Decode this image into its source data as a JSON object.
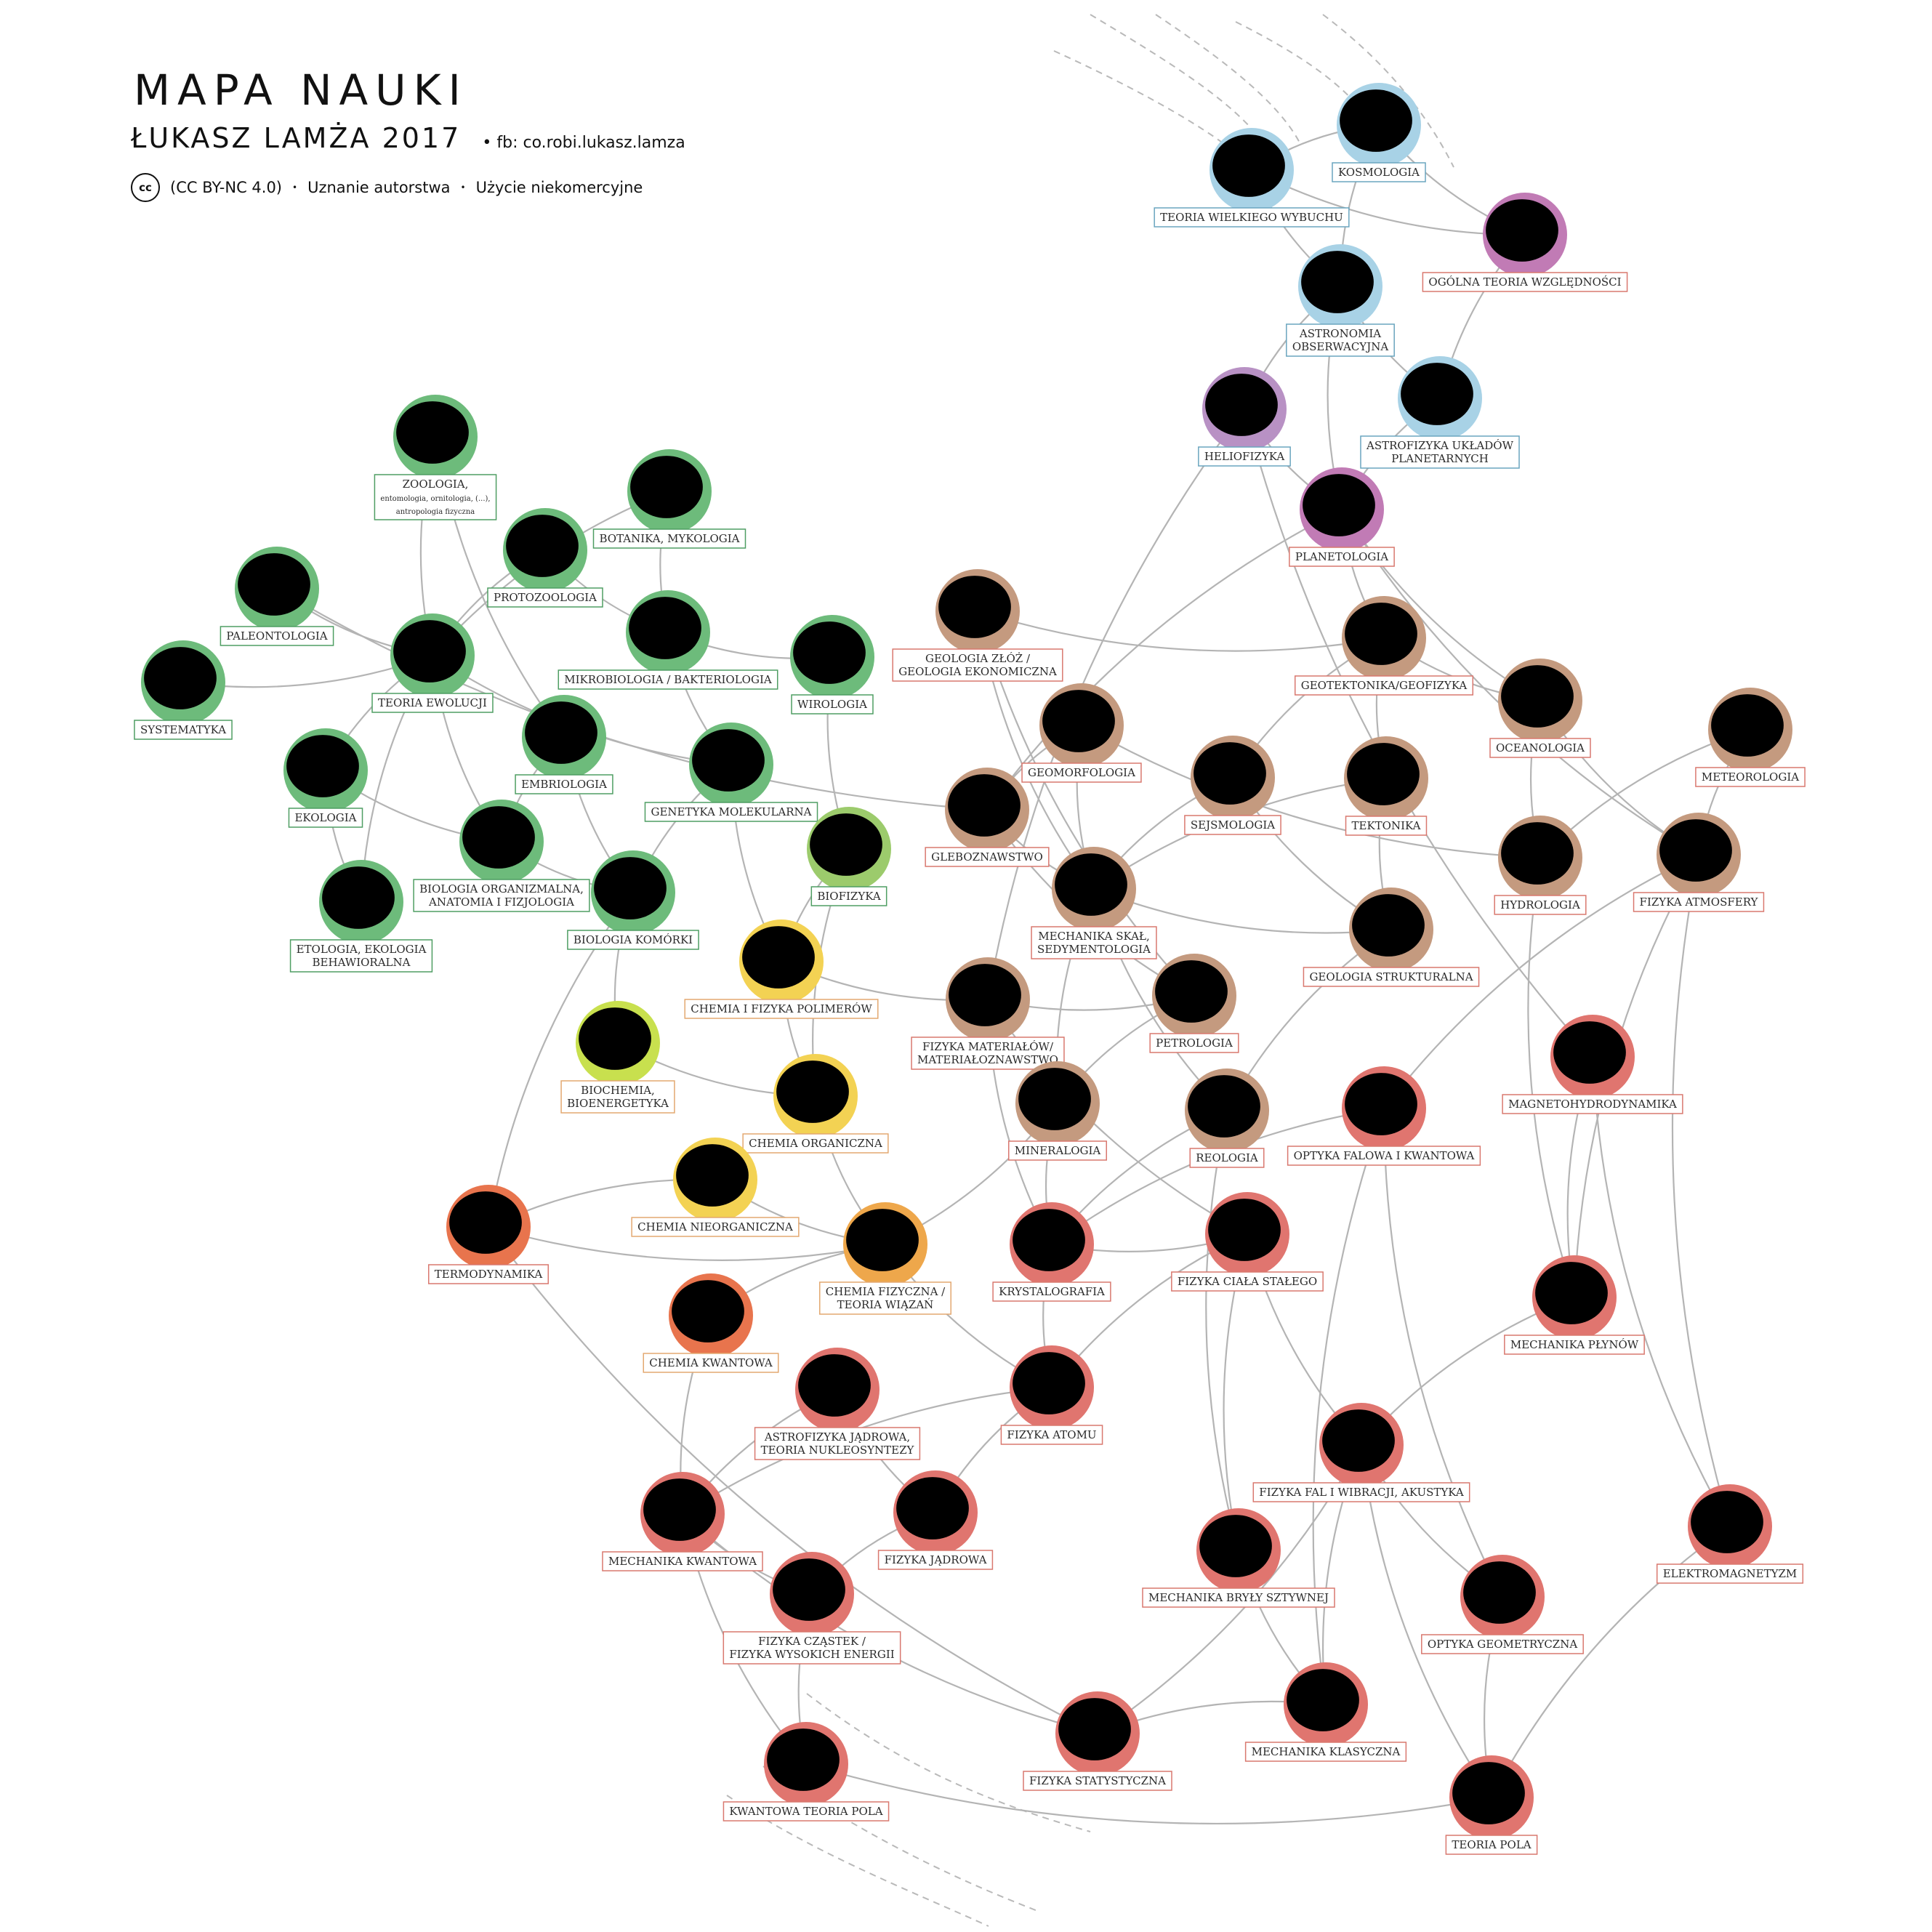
{
  "header": {
    "title": "MAPA NAUKI",
    "author": "ŁUKASZ LAMŻA 2017",
    "fb": "• fb: co.robi.lukasz.lamza",
    "cc_symbol": "cc",
    "license": "(CC BY-NC 4.0)",
    "attribution": "Uznanie autorstwa",
    "noncommercial": "Użycie niekomercyjne"
  },
  "colors": {
    "biology": "#6dbb7b",
    "biology_border": "#4f9e63",
    "biophysics": "#9ccb6c",
    "biochem": "#c8e04e",
    "chem_yellow": "#f3d253",
    "chem_orange": "#eea74b",
    "thermo": "#e8744d",
    "earth": "#c49a7f",
    "physics": "#e0756f",
    "astro_blue": "#a8d2e6",
    "astro_purple": "#b891c4",
    "gr_magenta": "#c17bb5",
    "edge": "#b4b4b4",
    "ink": "#000000"
  },
  "nodes": [
    {
      "id": "kosmologia",
      "lines": [
        "KOSMOLOGIA"
      ],
      "color": "astro_blue",
      "border": "#6aa5bf"
    },
    {
      "id": "teoria-wielkiego-wybuchu",
      "lines": [
        "TEORIA WIELKIEGO WYBUCHU"
      ],
      "color": "astro_blue",
      "border": "#6aa5bf"
    },
    {
      "id": "ogolna-teoria-wzglednosci",
      "lines": [
        "OGÓLNA TEORIA WZGLĘDNOŚCI"
      ],
      "color": "gr_magenta",
      "border": "#d9786f"
    },
    {
      "id": "astronomia-obserwacyjna",
      "lines": [
        "ASTRONOMIA",
        "OBSERWACYJNA"
      ],
      "color": "astro_blue",
      "border": "#6aa5bf"
    },
    {
      "id": "astrofizyka-ukladow",
      "lines": [
        "ASTROFIZYKA UKŁADÓW",
        "PLANETARNYCH"
      ],
      "color": "astro_blue",
      "border": "#6aa5bf"
    },
    {
      "id": "heliofizyka",
      "lines": [
        "HELIOFIZYKA"
      ],
      "color": "astro_purple",
      "border": "#6aa5bf"
    },
    {
      "id": "planetologia",
      "lines": [
        "PLANETOLOGIA"
      ],
      "color": "gr_magenta",
      "border": "#d9786f"
    },
    {
      "id": "zoologia",
      "lines": [
        "ZOOLOGIA,"
      ],
      "sub": [
        "entomologia, ornitologia, (...),",
        "antropologia fizyczna"
      ],
      "color": "biology",
      "border": "#4f9e63"
    },
    {
      "id": "botanika",
      "lines": [
        "BOTANIKA, MYKOLOGIA"
      ],
      "color": "biology",
      "border": "#4f9e63"
    },
    {
      "id": "protozoologia",
      "lines": [
        "PROTOZOOLOGIA"
      ],
      "color": "biology",
      "border": "#4f9e63"
    },
    {
      "id": "paleontologia",
      "lines": [
        "PALEONTOLOGIA"
      ],
      "color": "biology",
      "border": "#4f9e63"
    },
    {
      "id": "teoria-ewolucji",
      "lines": [
        "TEORIA EWOLUCJI"
      ],
      "color": "biology",
      "border": "#4f9e63"
    },
    {
      "id": "mikrobiologia",
      "lines": [
        "MIKROBIOLOGIA / BAKTERIOLOGIA"
      ],
      "color": "biology",
      "border": "#4f9e63"
    },
    {
      "id": "wirologia",
      "lines": [
        "WIROLOGIA"
      ],
      "color": "biology",
      "border": "#4f9e63"
    },
    {
      "id": "systematyka",
      "lines": [
        "SYSTEMATYKA"
      ],
      "color": "biology",
      "border": "#4f9e63"
    },
    {
      "id": "ekologia",
      "lines": [
        "EKOLOGIA"
      ],
      "color": "biology",
      "border": "#4f9e63"
    },
    {
      "id": "embriologia",
      "lines": [
        "EMBRIOLOGIA"
      ],
      "color": "biology",
      "border": "#4f9e63"
    },
    {
      "id": "genetyka",
      "lines": [
        "GENETYKA MOLEKULARNA"
      ],
      "color": "biology",
      "border": "#4f9e63"
    },
    {
      "id": "biofizyka",
      "lines": [
        "BIOFIZYKA"
      ],
      "color": "biophysics",
      "border": "#4f9e63"
    },
    {
      "id": "biologia-organizmalna",
      "lines": [
        "BIOLOGIA ORGANIZMALNA,",
        "ANATOMIA I FIZJOLOGIA"
      ],
      "color": "biology",
      "border": "#4f9e63"
    },
    {
      "id": "etologia",
      "lines": [
        "ETOLOGIA, EKOLOGIA",
        "BEHAWIORALNA"
      ],
      "color": "biology",
      "border": "#4f9e63"
    },
    {
      "id": "biologia-komorki",
      "lines": [
        "BIOLOGIA KOMÓRKI"
      ],
      "color": "biology",
      "border": "#4f9e63"
    },
    {
      "id": "chemia-polimerow",
      "lines": [
        "CHEMIA I FIZYKA POLIMERÓW"
      ],
      "color": "chem_yellow",
      "border": "#e3a870"
    },
    {
      "id": "biochemia",
      "lines": [
        "BIOCHEMIA,",
        "BIOENERGETYKA"
      ],
      "color": "biochem",
      "border": "#e3a870"
    },
    {
      "id": "chemia-organiczna",
      "lines": [
        "CHEMIA ORGANICZNA"
      ],
      "color": "chem_yellow",
      "border": "#e3a870"
    },
    {
      "id": "chemia-nieorganiczna",
      "lines": [
        "CHEMIA NIEORGANICZNA"
      ],
      "color": "chem_yellow",
      "border": "#e3a870"
    },
    {
      "id": "termodynamika",
      "lines": [
        "TERMODYNAMIKA"
      ],
      "color": "thermo",
      "border": "#d9786f"
    },
    {
      "id": "chemia-fizyczna",
      "lines": [
        "CHEMIA FIZYCZNA /",
        "TEORIA WIĄZAŃ"
      ],
      "color": "chem_orange",
      "border": "#e3a870"
    },
    {
      "id": "chemia-kwantowa",
      "lines": [
        "CHEMIA KWANTOWA"
      ],
      "color": "thermo",
      "border": "#e3a870"
    },
    {
      "id": "geologia-zloz",
      "lines": [
        "GEOLOGIA ZŁÓŻ /",
        "GEOLOGIA EKONOMICZNA"
      ],
      "color": "earth",
      "border": "#d9786f"
    },
    {
      "id": "geotektonika",
      "lines": [
        "GEOTEKTONIKA/GEOFIZYKA"
      ],
      "color": "earth",
      "border": "#d9786f"
    },
    {
      "id": "geomorfologia",
      "lines": [
        "GEOMORFOLOGIA"
      ],
      "color": "earth",
      "border": "#d9786f"
    },
    {
      "id": "oceanologia",
      "lines": [
        "OCEANOLOGIA"
      ],
      "color": "earth",
      "border": "#d9786f"
    },
    {
      "id": "meteorologia",
      "lines": [
        "METEOROLOGIA"
      ],
      "color": "earth",
      "border": "#d9786f"
    },
    {
      "id": "sejsmologia",
      "lines": [
        "SEJSMOLOGIA"
      ],
      "color": "earth",
      "border": "#d9786f"
    },
    {
      "id": "tektonika",
      "lines": [
        "TEKTONIKA"
      ],
      "color": "earth",
      "border": "#d9786f"
    },
    {
      "id": "gleboznawstwo",
      "lines": [
        "GLEBOZNAWSTWO"
      ],
      "color": "earth",
      "border": "#d9786f"
    },
    {
      "id": "hydrologia",
      "lines": [
        "HYDROLOGIA"
      ],
      "color": "earth",
      "border": "#d9786f"
    },
    {
      "id": "fizyka-atmosfery",
      "lines": [
        "FIZYKA ATMOSFERY"
      ],
      "color": "earth",
      "border": "#d9786f"
    },
    {
      "id": "mechanika-skal",
      "lines": [
        "MECHANIKA SKAŁ,",
        "SEDYMENTOLOGIA"
      ],
      "color": "earth",
      "border": "#d9786f"
    },
    {
      "id": "geologia-strukturalna",
      "lines": [
        "GEOLOGIA STRUKTURALNA"
      ],
      "color": "earth",
      "border": "#d9786f"
    },
    {
      "id": "fizyka-materialow",
      "lines": [
        "FIZYKA MATERIAŁÓW/",
        "MATERIAŁOZNAWSTWO"
      ],
      "color": "earth",
      "border": "#d9786f"
    },
    {
      "id": "petrologia",
      "lines": [
        "PETROLOGIA"
      ],
      "color": "earth",
      "border": "#d9786f"
    },
    {
      "id": "mineralogia",
      "lines": [
        "MINERALOGIA"
      ],
      "color": "earth",
      "border": "#d9786f"
    },
    {
      "id": "reologia",
      "lines": [
        "REOLOGIA"
      ],
      "color": "earth",
      "border": "#d9786f"
    },
    {
      "id": "optyka-falowa",
      "lines": [
        "OPTYKA FALOWA I KWANTOWA"
      ],
      "color": "physics",
      "border": "#d9786f"
    },
    {
      "id": "magnetohydrodynamika",
      "lines": [
        "MAGNETOHYDRODYNAMIKA"
      ],
      "color": "physics",
      "border": "#d9786f"
    },
    {
      "id": "krystalografia",
      "lines": [
        "KRYSTALOGRAFIA"
      ],
      "color": "physics",
      "border": "#d9786f"
    },
    {
      "id": "fizyka-ciala-stalego",
      "lines": [
        "FIZYKA CIAŁA STAŁEGO"
      ],
      "color": "physics",
      "border": "#d9786f"
    },
    {
      "id": "mechanika-plynow",
      "lines": [
        "MECHANIKA PŁYNÓW"
      ],
      "color": "physics",
      "border": "#d9786f"
    },
    {
      "id": "astrofizyka-jadrowa",
      "lines": [
        "ASTROFIZYKA JĄDROWA,",
        "TEORIA NUKLEOSYNTEZY"
      ],
      "color": "physics",
      "border": "#d9786f"
    },
    {
      "id": "fizyka-atomu",
      "lines": [
        "FIZYKA ATOMU"
      ],
      "color": "physics",
      "border": "#d9786f"
    },
    {
      "id": "fizyka-fal",
      "lines": [
        "FIZYKA FAL I WIBRACJI, AKUSTYKA"
      ],
      "color": "physics",
      "border": "#d9786f"
    },
    {
      "id": "mechanika-kwantowa",
      "lines": [
        "MECHANIKA KWANTOWA"
      ],
      "color": "physics",
      "border": "#d9786f"
    },
    {
      "id": "fizyka-jadrowa",
      "lines": [
        "FIZYKA JĄDROWA"
      ],
      "color": "physics",
      "border": "#d9786f"
    },
    {
      "id": "elektromagnetyzm",
      "lines": [
        "ELEKTROMAGNETYZM"
      ],
      "color": "physics",
      "border": "#d9786f"
    },
    {
      "id": "fizyka-czastek",
      "lines": [
        "FIZYKA CZĄSTEK /",
        "FIZYKA WYSOKICH ENERGII"
      ],
      "color": "physics",
      "border": "#d9786f"
    },
    {
      "id": "mechanika-bryly",
      "lines": [
        "MECHANIKA BRYŁY SZTYWNEJ"
      ],
      "color": "physics",
      "border": "#d9786f"
    },
    {
      "id": "optyka-geometryczna",
      "lines": [
        "OPTYKA GEOMETRYCZNA"
      ],
      "color": "physics",
      "border": "#d9786f"
    },
    {
      "id": "mechanika-klasyczna",
      "lines": [
        "MECHANIKA KLASYCZNA"
      ],
      "color": "physics",
      "border": "#d9786f"
    },
    {
      "id": "fizyka-statystyczna",
      "lines": [
        "FIZYKA STATYSTYCZNA"
      ],
      "color": "physics",
      "border": "#d9786f"
    },
    {
      "id": "kwantowa-teoria-pola",
      "lines": [
        "KWANTOWA TEORIA POLA"
      ],
      "color": "physics",
      "border": "#d9786f"
    },
    {
      "id": "teoria-pola",
      "lines": [
        "TEORIA POLA"
      ],
      "color": "physics",
      "border": "#d9786f"
    }
  ],
  "edges": [
    [
      "kosmologia",
      "teoria-wielkiego-wybuchu"
    ],
    [
      "kosmologia",
      "ogolna-teoria-wzglednosci"
    ],
    [
      "kosmologia",
      "astronomia-obserwacyjna"
    ],
    [
      "teoria-wielkiego-wybuchu",
      "ogolna-teoria-wzglednosci"
    ],
    [
      "teoria-wielkiego-wybuchu",
      "astronomia-obserwacyjna"
    ],
    [
      "astronomia-obserwacyjna",
      "astrofizyka-ukladow"
    ],
    [
      "ogolna-teoria-wzglednosci",
      "astrofizyka-ukladow"
    ],
    [
      "astronomia-obserwacyjna",
      "heliofizyka"
    ],
    [
      "astronomia-obserwacyjna",
      "planetologia"
    ],
    [
      "astrofizyka-ukladow",
      "planetologia"
    ],
    [
      "heliofizyka",
      "planetologia"
    ],
    [
      "heliofizyka",
      "fizyka-materialow"
    ],
    [
      "heliofizyka",
      "magnetohydrodynamika"
    ],
    [
      "planetologia",
      "geotektonika"
    ],
    [
      "planetologia",
      "fizyka-atmosfery"
    ],
    [
      "planetologia",
      "oceanologia"
    ],
    [
      "planetologia",
      "gleboznawstwo"
    ],
    [
      "zoologia",
      "teoria-ewolucji"
    ],
    [
      "zoologia",
      "embriologia"
    ],
    [
      "botanika",
      "teoria-ewolucji"
    ],
    [
      "botanika",
      "mikrobiologia"
    ],
    [
      "protozoologia",
      "teoria-ewolucji"
    ],
    [
      "protozoologia",
      "mikrobiologia"
    ],
    [
      "paleontologia",
      "teoria-ewolucji"
    ],
    [
      "paleontologia",
      "gleboznawstwo"
    ],
    [
      "systematyka",
      "teoria-ewolucji"
    ],
    [
      "teoria-ewolucji",
      "ekologia"
    ],
    [
      "teoria-ewolucji",
      "etologia"
    ],
    [
      "teoria-ewolucji",
      "biologia-organizmalna"
    ],
    [
      "teoria-ewolucji",
      "genetyka"
    ],
    [
      "mikrobiologia",
      "wirologia"
    ],
    [
      "mikrobiologia",
      "genetyka"
    ],
    [
      "ekologia",
      "etologia"
    ],
    [
      "ekologia",
      "biologia-organizmalna"
    ],
    [
      "embriologia",
      "biologia-organizmalna"
    ],
    [
      "embriologia",
      "biologia-komorki"
    ],
    [
      "genetyka",
      "biologia-komorki"
    ],
    [
      "genetyka",
      "chemia-polimerow"
    ],
    [
      "wirologia",
      "biofizyka"
    ],
    [
      "biofizyka",
      "chemia-polimerow"
    ],
    [
      "biofizyka",
      "chemia-organiczna"
    ],
    [
      "biologia-organizmalna",
      "biologia-komorki"
    ],
    [
      "biologia-komorki",
      "biochemia"
    ],
    [
      "biologia-komorki",
      "termodynamika"
    ],
    [
      "chemia-polimerow",
      "chemia-organiczna"
    ],
    [
      "chemia-polimerow",
      "fizyka-materialow"
    ],
    [
      "biochemia",
      "chemia-organiczna"
    ],
    [
      "chemia-organiczna",
      "chemia-fizyczna"
    ],
    [
      "chemia-nieorganiczna",
      "chemia-fizyczna"
    ],
    [
      "chemia-nieorganiczna",
      "termodynamika"
    ],
    [
      "termodynamika",
      "chemia-fizyczna"
    ],
    [
      "termodynamika",
      "fizyka-statystyczna"
    ],
    [
      "chemia-fizyczna",
      "chemia-kwantowa"
    ],
    [
      "chemia-fizyczna",
      "fizyka-atomu"
    ],
    [
      "chemia-fizyczna",
      "mineralogia"
    ],
    [
      "chemia-kwantowa",
      "mechanika-kwantowa"
    ],
    [
      "geologia-zloz",
      "geotektonika"
    ],
    [
      "geologia-zloz",
      "mechanika-skal"
    ],
    [
      "geologia-zloz",
      "petrologia"
    ],
    [
      "geotektonika",
      "sejsmologia"
    ],
    [
      "geotektonika",
      "tektonika"
    ],
    [
      "geotektonika",
      "oceanologia"
    ],
    [
      "geomorfologia",
      "gleboznawstwo"
    ],
    [
      "geomorfologia",
      "mechanika-skal"
    ],
    [
      "geomorfologia",
      "hydrologia"
    ],
    [
      "sejsmologia",
      "mechanika-skal"
    ],
    [
      "sejsmologia",
      "geologia-strukturalna"
    ],
    [
      "tektonika",
      "geologia-strukturalna"
    ],
    [
      "tektonika",
      "mechanika-skal"
    ],
    [
      "oceanologia",
      "hydrologia"
    ],
    [
      "oceanologia",
      "fizyka-atmosfery"
    ],
    [
      "meteorologia",
      "fizyka-atmosfery"
    ],
    [
      "meteorologia",
      "hydrologia"
    ],
    [
      "gleboznawstwo",
      "mechanika-skal"
    ],
    [
      "gleboznawstwo",
      "petrologia"
    ],
    [
      "mechanika-skal",
      "geologia-strukturalna"
    ],
    [
      "mechanika-skal",
      "reologia"
    ],
    [
      "mechanika-skal",
      "mineralogia"
    ],
    [
      "fizyka-materialow",
      "petrologia"
    ],
    [
      "fizyka-materialow",
      "krystalografia"
    ],
    [
      "fizyka-materialow",
      "fizyka-ciala-stalego"
    ],
    [
      "petrologia",
      "mineralogia"
    ],
    [
      "geologia-strukturalna",
      "reologia"
    ],
    [
      "mineralogia",
      "krystalografia"
    ],
    [
      "reologia",
      "mechanika-bryly"
    ],
    [
      "reologia",
      "krystalografia"
    ],
    [
      "hydrologia",
      "mechanika-plynow"
    ],
    [
      "fizyka-atmosfery",
      "mechanika-plynow"
    ],
    [
      "fizyka-atmosfery",
      "elektromagnetyzm"
    ],
    [
      "fizyka-atmosfery",
      "optyka-falowa"
    ],
    [
      "magnetohydrodynamika",
      "mechanika-plynow"
    ],
    [
      "magnetohydrodynamika",
      "elektromagnetyzm"
    ],
    [
      "optyka-falowa",
      "optyka-geometryczna"
    ],
    [
      "optyka-falowa",
      "mechanika-klasyczna"
    ],
    [
      "optyka-falowa",
      "krystalografia"
    ],
    [
      "krystalografia",
      "fizyka-ciala-stalego"
    ],
    [
      "krystalografia",
      "fizyka-atomu"
    ],
    [
      "fizyka-ciala-stalego",
      "mechanika-bryly"
    ],
    [
      "fizyka-ciala-stalego",
      "fizyka-fal"
    ],
    [
      "fizyka-ciala-stalego",
      "fizyka-atomu"
    ],
    [
      "mechanika-plynow",
      "fizyka-fal"
    ],
    [
      "astrofizyka-jadrowa",
      "fizyka-jadrowa"
    ],
    [
      "astrofizyka-jadrowa",
      "mechanika-kwantowa"
    ],
    [
      "fizyka-atomu",
      "mechanika-kwantowa"
    ],
    [
      "fizyka-atomu",
      "fizyka-jadrowa"
    ],
    [
      "fizyka-fal",
      "optyka-geometryczna"
    ],
    [
      "fizyka-fal",
      "mechanika-klasyczna"
    ],
    [
      "fizyka-fal",
      "teoria-pola"
    ],
    [
      "mechanika-kwantowa",
      "fizyka-czastek"
    ],
    [
      "mechanika-kwantowa",
      "fizyka-statystyczna"
    ],
    [
      "mechanika-kwantowa",
      "kwantowa-teoria-pola"
    ],
    [
      "fizyka-jadrowa",
      "fizyka-czastek"
    ],
    [
      "fizyka-czastek",
      "kwantowa-teoria-pola"
    ],
    [
      "mechanika-bryly",
      "mechanika-klasyczna"
    ],
    [
      "mechanika-klasyczna",
      "fizyka-statystyczna"
    ],
    [
      "elektromagnetyzm",
      "teoria-pola"
    ],
    [
      "kwantowa-teoria-pola",
      "teoria-pola"
    ],
    [
      "optyka-geometryczna",
      "teoria-pola"
    ],
    [
      "fizyka-statystyczna",
      "fizyka-fal"
    ]
  ]
}
